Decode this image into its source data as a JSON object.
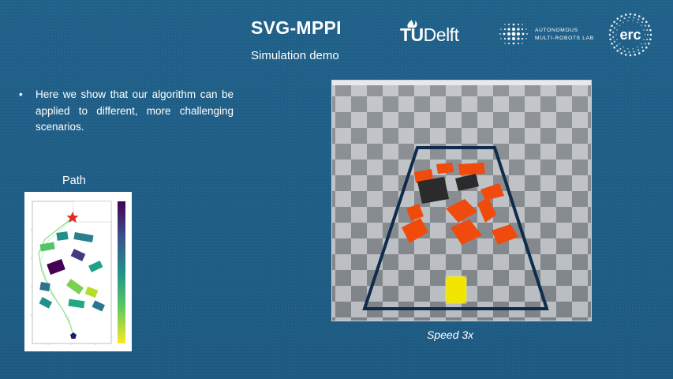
{
  "header": {
    "title": "SVG-MPPI",
    "subtitle": "Simulation demo"
  },
  "logos": {
    "tudelft": {
      "bold": "TU",
      "light": "Delft"
    },
    "amr": {
      "line1": "AUTONOMOUS",
      "line2": "MULTI-ROBOTS LAB"
    },
    "erc": "erc"
  },
  "bullets": [
    "Here we show that our algorithm can be applied to different, more challenging scenarios."
  ],
  "path_section": {
    "label": "Path"
  },
  "video": {
    "caption": "Speed 3x"
  },
  "colors": {
    "background": "#1f5e86",
    "obstacle_orange": "#f04a0c",
    "obstacle_dark": "#2b2b2b",
    "robot_yellow": "#f2e600",
    "goal_star": "#e03020",
    "start_marker": "#1a1a6e"
  }
}
